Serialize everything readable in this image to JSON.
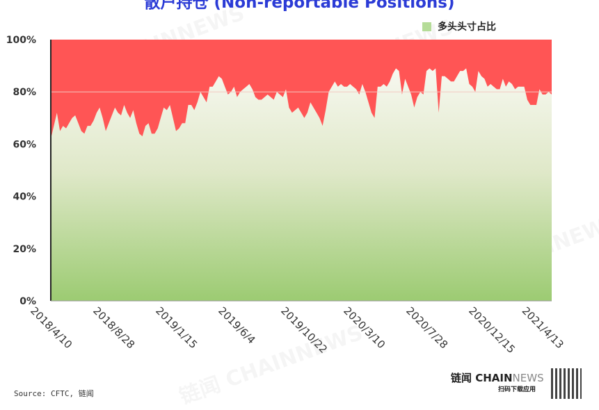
{
  "title": "散户持仓 (Non-reportable Positions)",
  "watermark": "链闻 CHAINNEWS",
  "source": "Source: CFTC, 链闻",
  "brand": {
    "name_cn": "链闻 ",
    "name_a": "CHAIN",
    "name_b": "NEWS",
    "sub": "扫码下载应用"
  },
  "chart_data": {
    "type": "area",
    "stacked_percent": true,
    "title": "散户持仓 (Non-reportable Positions)",
    "x_range": [
      "2018/4/10",
      "2021/5/4"
    ],
    "x_ticks": [
      "2018/4/10",
      "2018/8/28",
      "2019/1/15",
      "2019/6/4",
      "2019/10/22",
      "2020/3/10",
      "2020/7/28",
      "2020/12/15",
      "2021/4/13"
    ],
    "y_ticks": [
      "0%",
      "20%",
      "40%",
      "60%",
      "80%",
      "100%"
    ],
    "ylim": [
      0,
      100
    ],
    "grid": "horizontal at 80%",
    "legend": {
      "label": "多头头寸占比",
      "placement": "top-right"
    },
    "series": [
      {
        "name": "多头头寸占比",
        "color": "#a3d07a",
        "values": [
          62,
          67,
          72,
          65,
          67,
          66,
          68,
          70,
          71,
          68,
          65,
          64,
          67,
          67,
          69,
          72,
          74,
          70,
          65,
          68,
          71,
          74,
          72,
          71,
          75,
          72,
          70,
          73,
          68,
          64,
          63,
          67,
          68,
          64,
          64,
          66,
          70,
          74,
          73,
          75,
          70,
          65,
          66,
          68,
          68,
          75,
          75,
          73,
          76,
          80,
          78,
          76,
          82,
          82,
          84,
          86,
          85,
          82,
          79,
          80,
          82,
          78,
          80,
          81,
          82,
          83,
          81,
          78,
          77,
          77,
          78,
          79,
          78,
          77,
          80,
          79,
          78,
          81,
          74,
          72,
          73,
          74,
          72,
          70,
          72,
          76,
          74,
          72,
          70,
          67,
          73,
          80,
          82,
          84,
          82,
          83,
          82,
          82,
          83,
          82,
          81,
          79,
          83,
          80,
          76,
          72,
          70,
          82,
          82,
          83,
          82,
          84,
          87,
          89,
          88,
          79,
          85,
          82,
          79,
          74,
          78,
          80,
          79,
          88,
          89,
          88,
          89,
          72,
          86,
          86,
          85,
          84,
          84,
          86,
          88,
          88,
          89,
          83,
          82,
          80,
          88,
          86,
          85,
          82,
          83,
          82,
          81,
          81,
          85,
          82,
          84,
          83,
          81,
          82,
          82,
          82,
          77,
          75,
          75,
          75,
          81,
          79,
          79,
          80,
          79
        ]
      },
      {
        "name": "",
        "color": "#ff5555",
        "values": "remainder to 100%"
      }
    ]
  }
}
